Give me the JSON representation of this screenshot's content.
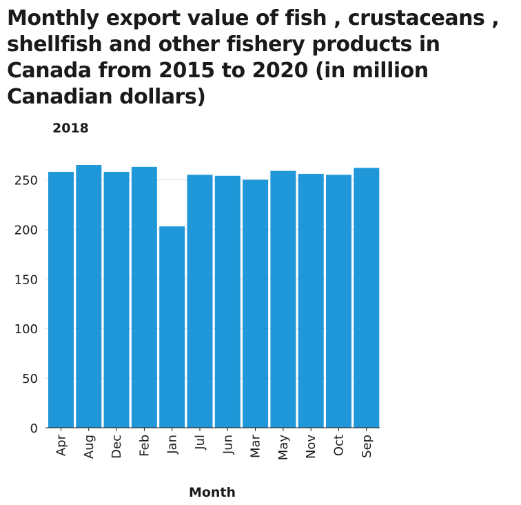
{
  "chart_data": {
    "type": "bar",
    "title": "Monthly export value of fish , crustaceans , shellfish and other fishery products in Canada from 2015 to 2020 (in million Canadian dollars)",
    "subtitle": "2018",
    "xlabel": "Month",
    "ylabel": "",
    "categories": [
      "Apr",
      "Aug",
      "Dec",
      "Feb",
      "Jan",
      "Jul",
      "Jun",
      "Mar",
      "May",
      "Nov",
      "Oct",
      "Sep"
    ],
    "values": [
      258,
      265,
      258,
      263,
      203,
      255,
      254,
      250,
      259,
      256,
      255,
      262
    ],
    "ylim": [
      0,
      265
    ],
    "yticks": [
      0,
      50,
      100,
      150,
      200,
      250
    ],
    "grid": true,
    "bar_color": "#1f97d8",
    "grid_color": "#dddddd"
  }
}
